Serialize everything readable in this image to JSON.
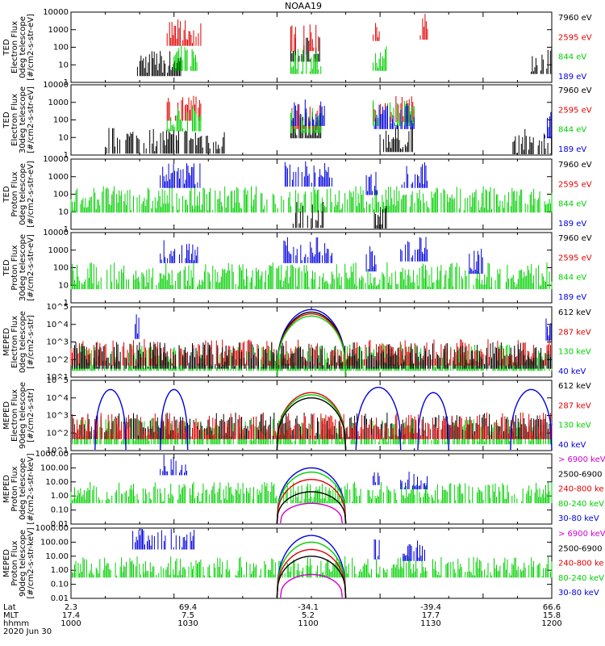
{
  "title": "NOAA19",
  "date_label": "2020 Jun 30",
  "footer": {
    "row_labels": [
      "Lat",
      "MLT",
      "hhmm"
    ],
    "columns": [
      {
        "lat": "2.3",
        "mlt": "17.4",
        "hhmm": "1000"
      },
      {
        "lat": "69.4",
        "mlt": "7.5",
        "hhmm": "1030"
      },
      {
        "lat": "-34.1",
        "mlt": "5.2",
        "hhmm": "1100"
      },
      {
        "lat": "-39.4",
        "mlt": "17.7",
        "hhmm": "1130"
      },
      {
        "lat": "66.6",
        "mlt": "15.8",
        "hhmm": "1200"
      }
    ]
  },
  "chart_data": [
    {
      "type": "line",
      "ylog": true,
      "ylabel": [
        "TED",
        "Electron Flux",
        "0deg telescope",
        "[#/cm2-s-str-eV]"
      ],
      "yticks": [
        "1",
        "10",
        "100",
        "1000",
        "10000"
      ],
      "legend": [
        {
          "label": "7960 eV",
          "color": "#000000"
        },
        {
          "label": "2595 eV",
          "color": "#e00000"
        },
        {
          "label": "844 eV",
          "color": "#00d000"
        },
        {
          "label": "189 eV",
          "color": "#0000e0"
        }
      ],
      "series": [
        {
          "color": "#000000",
          "bursts": [
            [
              19,
              32,
              15
            ],
            [
              64,
              73,
              100
            ],
            [
              134,
              140,
              20
            ]
          ]
        },
        {
          "color": "#e00000",
          "bursts": [
            [
              28,
              38,
              800
            ],
            [
              64,
              73,
              400
            ],
            [
              88,
              90,
              1500
            ],
            [
              101,
              104,
              1800
            ]
          ]
        },
        {
          "color": "#00d000",
          "bursts": [
            [
              30,
              37,
              30
            ],
            [
              64,
              73,
              20
            ],
            [
              88,
              92,
              30
            ]
          ]
        }
      ]
    },
    {
      "type": "line",
      "ylog": true,
      "ylabel": [
        "TED",
        "Electron Flux",
        "30deg telescope",
        "[#/cm2-s-str-eV]"
      ],
      "yticks": [
        "1",
        "10",
        "100",
        "1000",
        "10000"
      ],
      "legend": [
        {
          "label": "7960 eV",
          "color": "#000000"
        },
        {
          "label": "2595 eV",
          "color": "#e00000"
        },
        {
          "label": "844 eV",
          "color": "#00d000"
        },
        {
          "label": "189 eV",
          "color": "#0000e0"
        }
      ],
      "series": [
        {
          "color": "#000000",
          "bursts": [
            [
              10,
              45,
              8
            ],
            [
              64,
              73,
              60
            ],
            [
              90,
              100,
              10
            ],
            [
              128,
              140,
              6
            ]
          ]
        },
        {
          "color": "#e00000",
          "bursts": [
            [
              28,
              38,
              600
            ],
            [
              64,
              73,
              200
            ],
            [
              88,
              100,
              500
            ]
          ]
        },
        {
          "color": "#00d000",
          "bursts": [
            [
              28,
              38,
              150
            ],
            [
              64,
              73,
              120
            ],
            [
              88,
              100,
              300
            ]
          ]
        },
        {
          "color": "#0000e0",
          "bursts": [
            [
              64,
              74,
              300
            ],
            [
              88,
              100,
              200
            ],
            [
              138,
              140,
              60
            ]
          ]
        }
      ]
    },
    {
      "type": "line",
      "ylog": true,
      "ylabel": [
        "TED",
        "Proton Flux",
        "0deg telescope",
        "[#/cm2-s-str-eV]"
      ],
      "yticks": [
        "1",
        "10",
        "100",
        "1000",
        "10000"
      ],
      "legend": [
        {
          "label": "7960 eV",
          "color": "#000000"
        },
        {
          "label": "2595 eV",
          "color": "#e00000"
        },
        {
          "label": "844 eV",
          "color": "#00d000"
        },
        {
          "label": "189 eV",
          "color": "#0000e0"
        }
      ],
      "series": [
        {
          "color": "#00d000",
          "bursts": [
            [
              0,
              140,
              60
            ]
          ]
        },
        {
          "color": "#0000e0",
          "bursts": [
            [
              26,
              38,
              1500
            ],
            [
              62,
              76,
              1800
            ],
            [
              86,
              90,
              600
            ],
            [
              96,
              104,
              1500
            ]
          ]
        },
        {
          "color": "#000000",
          "bursts": [
            [
              64,
              74,
              8
            ],
            [
              88,
              92,
              5
            ]
          ]
        }
      ]
    },
    {
      "type": "line",
      "ylog": true,
      "ylabel": [
        "TED",
        "Proton Flux",
        "30deg telescope",
        "[#/cm2-s-str-eV]"
      ],
      "yticks": [
        "1",
        "10",
        "100",
        "1000",
        "10000"
      ],
      "legend": [
        {
          "label": "7960 eV",
          "color": "#000000"
        },
        {
          "label": "2595 eV",
          "color": "#e00000"
        },
        {
          "label": "844 eV",
          "color": "#00d000"
        },
        {
          "label": "189 eV",
          "color": "#0000e0"
        }
      ],
      "series": [
        {
          "color": "#00d000",
          "bursts": [
            [
              0,
              140,
              40
            ]
          ]
        },
        {
          "color": "#0000e0",
          "bursts": [
            [
              26,
              38,
              1200
            ],
            [
              62,
              76,
              1200
            ],
            [
              86,
              90,
              400
            ],
            [
              96,
              104,
              1500
            ],
            [
              116,
              120,
              300
            ]
          ]
        }
      ]
    },
    {
      "type": "line",
      "ylog": true,
      "ylabel": [
        "MEPED",
        "Electron Flux",
        "0deg telescope",
        "[#/cm2-s-str]"
      ],
      "yticks": [
        "10^1",
        "10^2",
        "10^3",
        "10^4",
        "10^5"
      ],
      "legend": [
        {
          "label": "612 keV",
          "color": "#000000"
        },
        {
          "label": "287 keV",
          "color": "#e00000"
        },
        {
          "label": "130 keV",
          "color": "#00d000"
        },
        {
          "label": "40 keV",
          "color": "#0000e0"
        }
      ],
      "series": [
        {
          "color": "#00d000",
          "bursts": [
            [
              0,
              140,
              150
            ]
          ]
        },
        {
          "color": "#e00000",
          "bursts": [
            [
              0,
              140,
              300
            ]
          ]
        },
        {
          "color": "#000000",
          "bursts": [
            [
              0,
              140,
              200
            ]
          ]
        },
        {
          "color": "#0000e0",
          "bursts": [
            [
              18,
              20,
              10000
            ],
            [
              138,
              140,
              8000
            ]
          ]
        }
      ],
      "humps": [
        {
          "color": "#0000e0",
          "x0": 60,
          "x1": 80,
          "peak": 70000
        },
        {
          "color": "#000000",
          "x0": 60,
          "x1": 80,
          "peak": 50000
        },
        {
          "color": "#e00000",
          "x0": 60,
          "x1": 80,
          "peak": 40000
        },
        {
          "color": "#00d000",
          "x0": 60,
          "x1": 80,
          "peak": 30000
        }
      ]
    },
    {
      "type": "line",
      "ylog": true,
      "ylabel": [
        "MEPED",
        "Electron Flux",
        "90deg telescope",
        "[#/cm2-s-str]"
      ],
      "yticks": [
        "10^1",
        "10^2",
        "10^3",
        "10^4",
        "10^5"
      ],
      "legend": [
        {
          "label": "612 keV",
          "color": "#000000"
        },
        {
          "label": "287 keV",
          "color": "#e00000"
        },
        {
          "label": "130 keV",
          "color": "#00d000"
        },
        {
          "label": "40 keV",
          "color": "#0000e0"
        }
      ],
      "series": [
        {
          "color": "#00d000",
          "bursts": [
            [
              0,
              140,
              150
            ]
          ]
        },
        {
          "color": "#000000",
          "bursts": [
            [
              0,
              140,
              300
            ]
          ]
        },
        {
          "color": "#e00000",
          "bursts": [
            [
              0,
              140,
              300
            ]
          ]
        }
      ],
      "humps": [
        {
          "color": "#0000e0",
          "x0": 7,
          "x1": 16,
          "peak": 30000
        },
        {
          "color": "#0000e0",
          "x0": 26,
          "x1": 34,
          "peak": 30000
        },
        {
          "color": "#0000e0",
          "x0": 83,
          "x1": 96,
          "peak": 40000
        },
        {
          "color": "#0000e0",
          "x0": 101,
          "x1": 110,
          "peak": 20000
        },
        {
          "color": "#0000e0",
          "x0": 128,
          "x1": 140,
          "peak": 30000
        },
        {
          "color": "#e00000",
          "x0": 60,
          "x1": 80,
          "peak": 20000
        },
        {
          "color": "#00d000",
          "x0": 60,
          "x1": 80,
          "peak": 15000
        },
        {
          "color": "#000000",
          "x0": 60,
          "x1": 80,
          "peak": 10000
        }
      ]
    },
    {
      "type": "line",
      "ylog": true,
      "ylabel": [
        "MEPED",
        "Proton Flux",
        "0deg telescope",
        "[#/cm2-s-str-keV]"
      ],
      "yticks": [
        "0.01",
        "0.10",
        "1.00",
        "10.00",
        "100.00",
        "1000.00"
      ],
      "legend": [
        {
          "label": "> 6900 keV",
          "color": "#d000d0"
        },
        {
          "label": "2500-6900",
          "color": "#000000"
        },
        {
          "label": "240-800 ke",
          "color": "#e00000"
        },
        {
          "label": "80-240 keV",
          "color": "#00d000"
        },
        {
          "label": "30-80 keV",
          "color": "#0000e0"
        }
      ],
      "series": [
        {
          "color": "#00d000",
          "bursts": [
            [
              0,
              140,
              2
            ]
          ]
        },
        {
          "color": "#0000e0",
          "bursts": [
            [
              26,
              34,
              200
            ],
            [
              88,
              90,
              40
            ],
            [
              96,
              104,
              20
            ]
          ]
        }
      ],
      "humps": [
        {
          "color": "#0000e0",
          "x0": 60,
          "x1": 80,
          "peak": 100
        },
        {
          "color": "#00d000",
          "x0": 60,
          "x1": 80,
          "peak": 50
        },
        {
          "color": "#e00000",
          "x0": 60,
          "x1": 80,
          "peak": 15
        },
        {
          "color": "#000000",
          "x0": 60,
          "x1": 80,
          "peak": 2
        },
        {
          "color": "#d000d0",
          "x0": 61,
          "x1": 79,
          "peak": 0.3
        }
      ]
    },
    {
      "type": "line",
      "ylog": true,
      "ylabel": [
        "MEPED",
        "Proton Flux",
        "90deg telescope",
        "[#/cm2-s-str-keV]"
      ],
      "yticks": [
        "0.01",
        "0.10",
        "1.00",
        "10.00",
        "100.00",
        "1000.00"
      ],
      "legend": [
        {
          "label": "> 6900 keV",
          "color": "#d000d0"
        },
        {
          "label": "2500-6900",
          "color": "#000000"
        },
        {
          "label": "240-800 ke",
          "color": "#e00000"
        },
        {
          "label": "80-240 keV",
          "color": "#00d000"
        },
        {
          "label": "30-80 keV",
          "color": "#0000e0"
        }
      ],
      "series": [
        {
          "color": "#00d000",
          "bursts": [
            [
              0,
              140,
              2
            ]
          ]
        },
        {
          "color": "#0000e0",
          "bursts": [
            [
              18,
              36,
              200
            ],
            [
              88,
              90,
              40
            ],
            [
              96,
              104,
              30
            ]
          ]
        }
      ],
      "humps": [
        {
          "color": "#0000e0",
          "x0": 60,
          "x1": 80,
          "peak": 300
        },
        {
          "color": "#00d000",
          "x0": 60,
          "x1": 80,
          "peak": 100
        },
        {
          "color": "#e00000",
          "x0": 60,
          "x1": 80,
          "peak": 30
        },
        {
          "color": "#000000",
          "x0": 60,
          "x1": 80,
          "peak": 10
        },
        {
          "color": "#d000d0",
          "x0": 61,
          "x1": 79,
          "peak": 0.5
        }
      ]
    }
  ]
}
